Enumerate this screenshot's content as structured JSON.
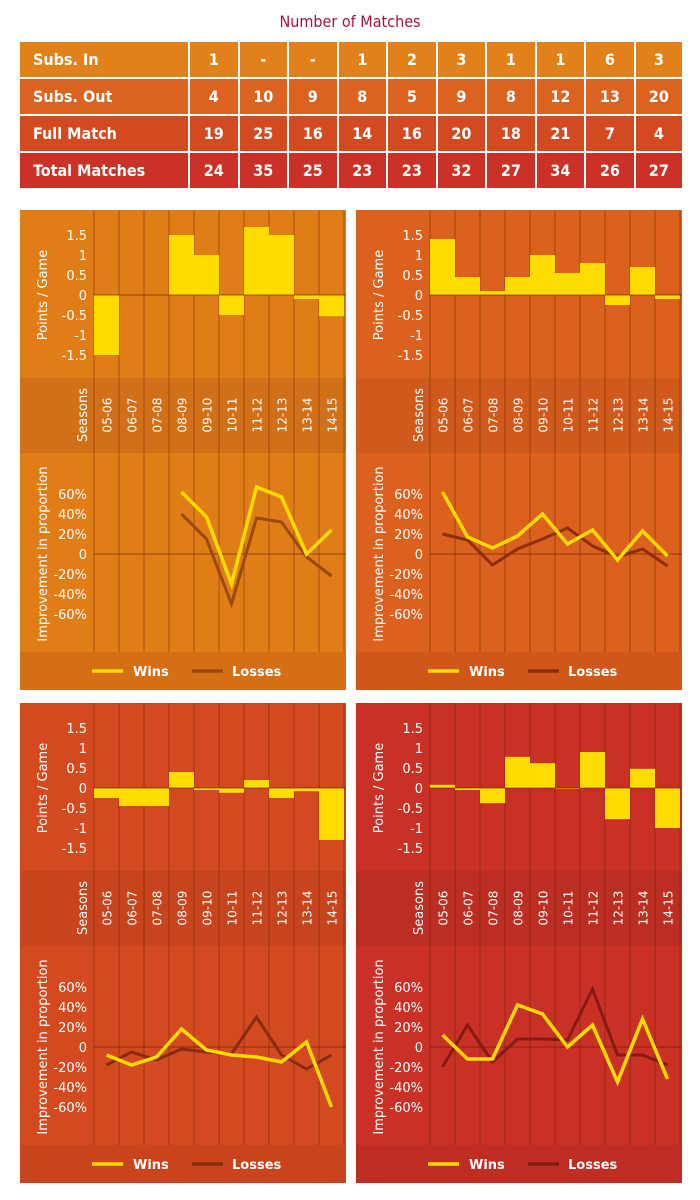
{
  "title": "Number of Matches",
  "table": {
    "rows": [
      {
        "label": "Subs. In",
        "values": [
          "1",
          "-",
          "-",
          "1",
          "2",
          "3",
          "1",
          "1",
          "6",
          "3"
        ]
      },
      {
        "label": "Subs. Out",
        "values": [
          "4",
          "10",
          "9",
          "8",
          "5",
          "9",
          "8",
          "12",
          "13",
          "20"
        ]
      },
      {
        "label": "Full Match",
        "values": [
          "19",
          "25",
          "16",
          "14",
          "16",
          "20",
          "18",
          "21",
          "7",
          "4"
        ]
      },
      {
        "label": "Total Matches",
        "values": [
          "24",
          "35",
          "25",
          "23",
          "23",
          "32",
          "27",
          "34",
          "26",
          "27"
        ]
      }
    ]
  },
  "chart_data": [
    {
      "type": "bar+line",
      "bg": "#e07d17",
      "band": "#d2701a",
      "legendbg": "#d46f15",
      "loss": "#9a4a0c",
      "bars": [
        -1.5,
        0,
        0,
        1.5,
        1.0,
        -0.5,
        1.7,
        1.5,
        -0.1,
        -0.53
      ],
      "wins": [
        null,
        null,
        null,
        62,
        37,
        -30,
        67,
        57,
        0,
        24
      ],
      "losses": [
        null,
        null,
        null,
        40,
        15,
        -50,
        36,
        32,
        -3,
        -22
      ]
    },
    {
      "type": "bar+line",
      "bg": "#dc601e",
      "band": "#cf5a1c",
      "legendbg": "#d0561a",
      "loss": "#8e2e0c",
      "bars": [
        1.4,
        0.45,
        0.1,
        0.45,
        1.0,
        0.55,
        0.8,
        -0.25,
        0.7,
        -0.1
      ],
      "wins": [
        62,
        17,
        6,
        18,
        40,
        10,
        24,
        -6,
        23,
        -2
      ],
      "losses": [
        20,
        14,
        -11,
        5,
        15,
        26,
        8,
        -3,
        5,
        -12
      ]
    },
    {
      "type": "bar+line",
      "bg": "#d44a20",
      "band": "#c7441d",
      "legendbg": "#c9431d",
      "loss": "#8a2a10",
      "bars": [
        -0.25,
        -0.45,
        -0.45,
        0.4,
        -0.05,
        -0.12,
        0.2,
        -0.25,
        -0.08,
        -1.3
      ],
      "wins": [
        -8,
        -18,
        -10,
        18,
        -3,
        -8,
        -10,
        -15,
        5,
        -60
      ],
      "losses": [
        -18,
        -5,
        -13,
        -2,
        -5,
        -7,
        30,
        -8,
        -22,
        -8
      ]
    },
    {
      "type": "bar+line",
      "bg": "#c93126",
      "band": "#bc2d22",
      "legendbg": "#be2c22",
      "loss": "#861a14",
      "bars": [
        0.08,
        -0.05,
        -0.38,
        0.78,
        0.62,
        -0.02,
        0.9,
        -0.78,
        0.48,
        -1.0
      ],
      "wins": [
        12,
        -12,
        -12,
        42,
        33,
        0,
        22,
        -35,
        28,
        -32
      ],
      "losses": [
        -20,
        22,
        -15,
        8,
        8,
        7,
        58,
        -8,
        -8,
        -18
      ]
    }
  ],
  "axes": {
    "bar_ylabel": "Points / Game",
    "bar_ticks": [
      "1.5",
      "1",
      "0.5",
      "0",
      "-0.5",
      "-1",
      "-1.5"
    ],
    "bar_tick_values": [
      1.5,
      1,
      0.5,
      0,
      -0.5,
      -1,
      -1.5
    ],
    "seasons_label": "Seasons",
    "seasons": [
      "05-06",
      "06-07",
      "07-08",
      "08-09",
      "09-10",
      "10-11",
      "11-12",
      "12-13",
      "13-14",
      "14-15"
    ],
    "line_ylabel": "Improvement in proportion",
    "line_ticks": [
      "60%",
      "40%",
      "20%",
      "0",
      "-20%",
      "-40%",
      "-60%"
    ],
    "line_tick_values": [
      60,
      40,
      20,
      0,
      -20,
      -40,
      -60
    ]
  },
  "legend": {
    "wins": "Wins",
    "losses": "Losses",
    "wins_color": "#ffdc00"
  }
}
